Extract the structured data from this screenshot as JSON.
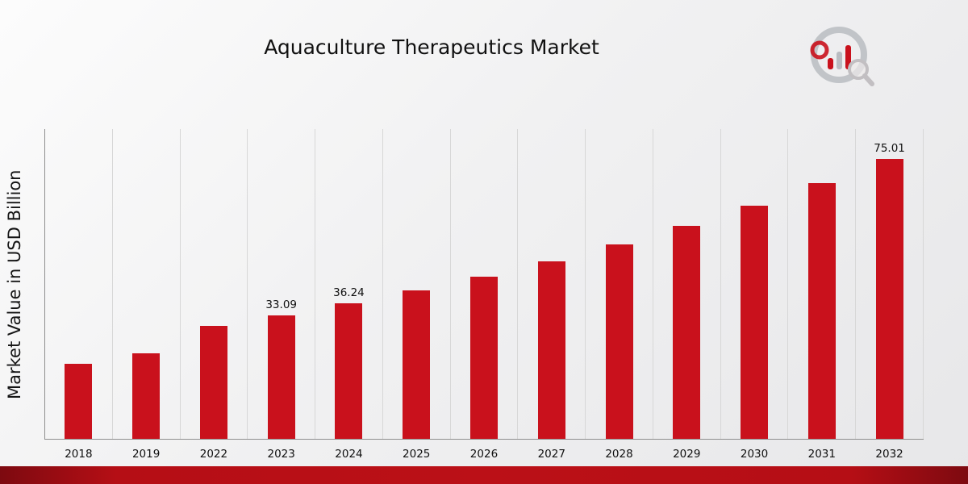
{
  "title": "Aquaculture Therapeutics Market",
  "ylabel": "Market Value in USD Billion",
  "logo_name": "market-research-brand-logo",
  "chart_data": {
    "type": "bar",
    "title": "Aquaculture Therapeutics Market",
    "xlabel": "",
    "ylabel": "Market Value in USD Billion",
    "categories": [
      "2018",
      "2019",
      "2022",
      "2023",
      "2024",
      "2025",
      "2026",
      "2027",
      "2028",
      "2029",
      "2030",
      "2031",
      "2032"
    ],
    "values": [
      20.1,
      23.0,
      30.2,
      33.09,
      36.24,
      39.69,
      43.47,
      47.61,
      52.14,
      57.1,
      62.54,
      68.49,
      75.01
    ],
    "data_labels": [
      "",
      "",
      "",
      "33.09",
      "36.24",
      "",
      "",
      "",
      "",
      "",
      "",
      "",
      "75.01"
    ],
    "bar_color": "#c9111c",
    "ylim": [
      0,
      83
    ],
    "grid": "vertical-only",
    "legend": "none",
    "unit": "USD Billion"
  },
  "footer": {
    "stripe_color": "#b50e15"
  }
}
